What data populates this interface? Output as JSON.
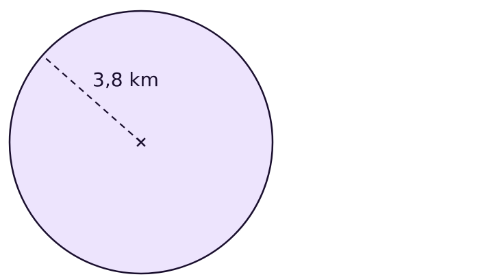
{
  "diagram": {
    "radius_label": "3,8 km",
    "colors": {
      "circle_fill": "#ede4fd",
      "stroke": "#1a0f2e"
    },
    "center_marker": "cross"
  }
}
